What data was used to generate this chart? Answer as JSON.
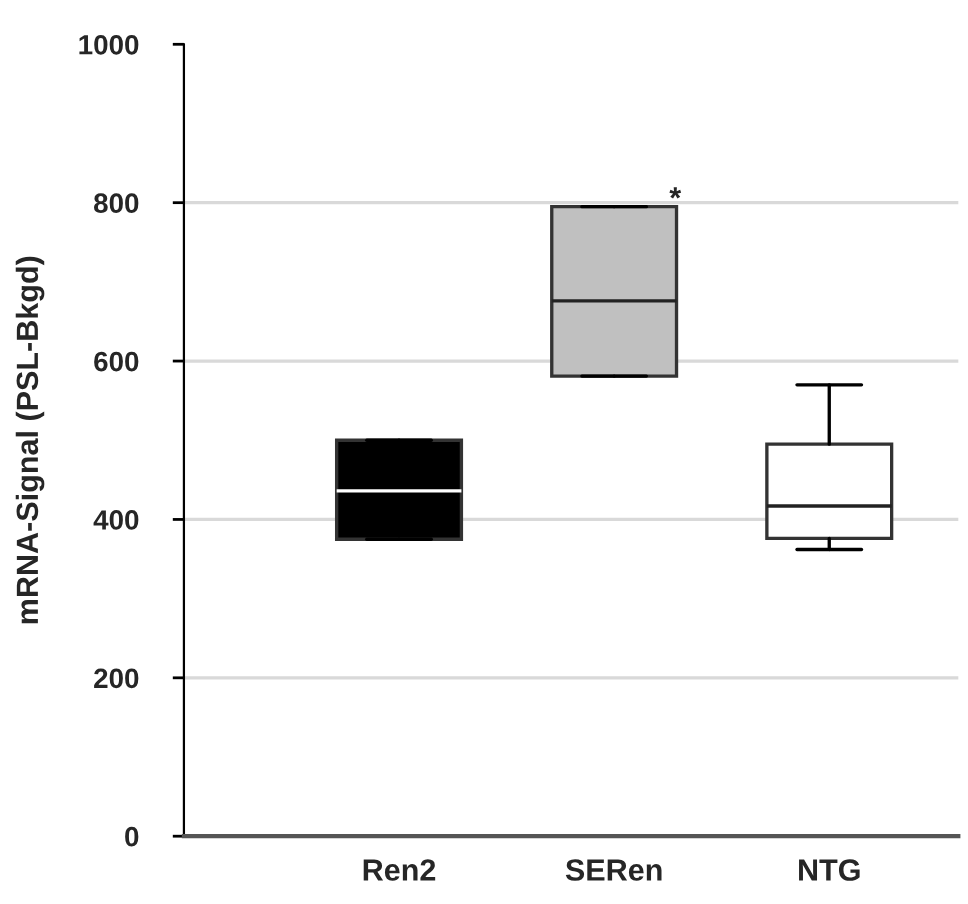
{
  "chart_data": {
    "type": "box",
    "ylabel": "mRNA-Signal (PSL-Bkgd)",
    "categories": [
      "Ren2",
      "SERen",
      "NTG"
    ],
    "colors": [
      "#000000",
      "#c0c0c0",
      "#ffffff"
    ],
    "boxes": [
      {
        "low": 375,
        "q1": 375,
        "median": 436,
        "q3": 500,
        "high": 500
      },
      {
        "low": 581,
        "q1": 581,
        "median": 676,
        "q3": 795,
        "high": 795
      },
      {
        "low": 362,
        "q1": 376,
        "median": 417,
        "q3": 495,
        "high": 570
      }
    ],
    "ylim": [
      0,
      1000
    ],
    "yticks": [
      0,
      200,
      400,
      600,
      800,
      1000
    ],
    "grid": "y",
    "annotations": [
      {
        "text": "*",
        "x": "SERen",
        "y": 803
      }
    ]
  }
}
